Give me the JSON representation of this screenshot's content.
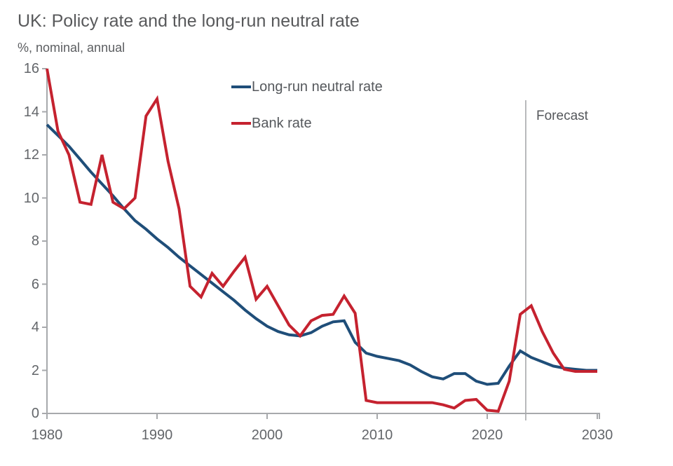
{
  "title": "UK: Policy rate and the long-run neutral rate",
  "subtitle": "%, nominal, annual",
  "forecast_label": "Forecast",
  "colors": {
    "neutral_rate": "#1f4e79",
    "bank_rate": "#c5222f",
    "axis": "#a7a9ac",
    "forecast_line": "#a7a9ac",
    "title_text": "#58595b",
    "tick_text": "#63666a"
  },
  "chart_data": {
    "type": "line",
    "title": "UK: Policy rate and the long-run neutral rate",
    "ylabel": "%, nominal, annual",
    "xlim": [
      1980,
      2030
    ],
    "ylim": [
      0,
      16
    ],
    "grid": false,
    "legend_position": "top-center",
    "forecast_divider_x": 2023.5,
    "x_ticks": [
      1980,
      1990,
      2000,
      2010,
      2020,
      2030
    ],
    "y_ticks": [
      0,
      2,
      4,
      6,
      8,
      10,
      12,
      14,
      16
    ],
    "x": [
      1980,
      1981,
      1982,
      1983,
      1984,
      1985,
      1986,
      1987,
      1988,
      1989,
      1990,
      1991,
      1992,
      1993,
      1994,
      1995,
      1996,
      1997,
      1998,
      1999,
      2000,
      2001,
      2002,
      2003,
      2004,
      2005,
      2006,
      2007,
      2008,
      2009,
      2010,
      2011,
      2012,
      2013,
      2014,
      2015,
      2016,
      2017,
      2018,
      2019,
      2020,
      2021,
      2022,
      2023,
      2024,
      2025,
      2026,
      2027,
      2028,
      2029,
      2030
    ],
    "series": [
      {
        "name": "Long-run neutral rate",
        "color": "#1f4e79",
        "values": [
          13.4,
          12.9,
          12.4,
          11.8,
          11.2,
          10.65,
          10.1,
          9.5,
          8.95,
          8.55,
          8.1,
          7.7,
          7.25,
          6.85,
          6.45,
          6.05,
          5.65,
          5.25,
          4.8,
          4.4,
          4.05,
          3.8,
          3.65,
          3.6,
          3.75,
          4.05,
          4.25,
          4.3,
          3.3,
          2.8,
          2.65,
          2.55,
          2.45,
          2.25,
          1.95,
          1.7,
          1.6,
          1.85,
          1.85,
          1.5,
          1.35,
          1.4,
          2.2,
          2.9,
          2.6,
          2.4,
          2.2,
          2.1,
          2.05,
          2.0,
          2.0
        ]
      },
      {
        "name": "Bank rate",
        "color": "#c5222f",
        "values": [
          16.0,
          13.1,
          12.0,
          9.8,
          9.7,
          12.0,
          9.8,
          9.5,
          10.0,
          13.8,
          14.6,
          11.7,
          9.5,
          5.9,
          5.4,
          6.5,
          5.9,
          6.6,
          7.25,
          5.3,
          5.9,
          5.0,
          4.1,
          3.6,
          4.3,
          4.55,
          4.6,
          5.45,
          4.65,
          0.6,
          0.5,
          0.5,
          0.5,
          0.5,
          0.5,
          0.5,
          0.4,
          0.25,
          0.6,
          0.65,
          0.15,
          0.1,
          1.5,
          4.6,
          5.0,
          3.8,
          2.8,
          2.05,
          1.95,
          1.95,
          1.95
        ]
      }
    ]
  }
}
